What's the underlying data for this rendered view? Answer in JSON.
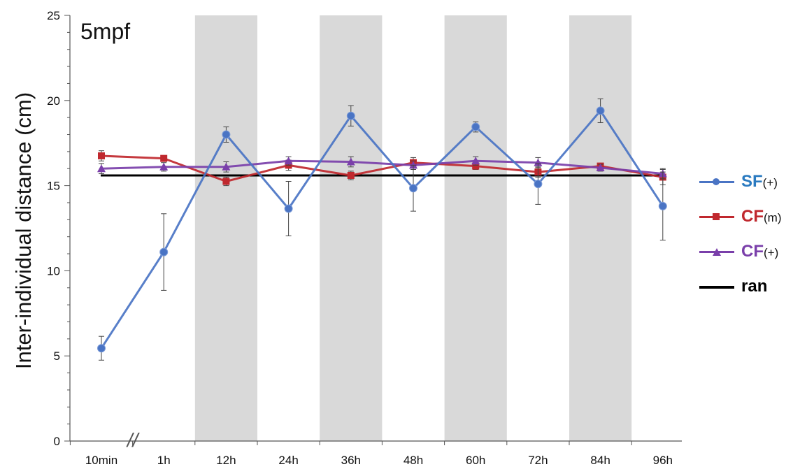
{
  "chart_data": {
    "type": "line",
    "panel_label": "5mpf",
    "ylabel": "Inter-individual distance (cm)",
    "xlabel": "",
    "ylim": [
      0,
      25
    ],
    "yticks": [
      0,
      5,
      10,
      15,
      20,
      25
    ],
    "categories": [
      "10min",
      "1h",
      "12h",
      "24h",
      "36h",
      "48h",
      "60h",
      "72h",
      "84h",
      "96h"
    ],
    "axis_break": "//",
    "shaded_intervals": [
      [
        "12h",
        "24h"
      ],
      [
        "36h",
        "48h"
      ],
      [
        "60h",
        "72h"
      ],
      [
        "84h",
        "96h"
      ]
    ],
    "shade_color": "#d9d9d9",
    "grid": false,
    "legend_position": "right",
    "series": [
      {
        "name": "SF",
        "name_suffix": "(+)",
        "marker": "circle",
        "color": "#4a74c4",
        "label_color": "#2a7ac0",
        "values": [
          5.45,
          11.1,
          18.0,
          13.65,
          19.1,
          14.85,
          18.45,
          15.1,
          19.4,
          13.8
        ],
        "errors": [
          0.7,
          2.25,
          0.45,
          1.6,
          0.6,
          1.35,
          0.3,
          1.2,
          0.7,
          2.0
        ]
      },
      {
        "name": "CF",
        "name_suffix": "(m)",
        "marker": "square",
        "color": "#c0282e",
        "label_color": "#c0282e",
        "values": [
          16.75,
          16.6,
          15.25,
          16.2,
          15.6,
          16.35,
          16.15,
          15.8,
          16.15,
          15.5
        ],
        "errors": [
          0.3,
          0.15,
          0.25,
          0.3,
          0.25,
          0.3,
          0.2,
          0.3,
          0.15,
          0.45
        ]
      },
      {
        "name": "CF",
        "name_suffix": "(+)",
        "marker": "triangle",
        "color": "#7a3faa",
        "label_color": "#7a3faa",
        "values": [
          16.0,
          16.1,
          16.1,
          16.45,
          16.4,
          16.2,
          16.45,
          16.35,
          16.05,
          15.7
        ],
        "errors": [
          0.3,
          0.25,
          0.3,
          0.25,
          0.3,
          0.25,
          0.25,
          0.3,
          0.2,
          0.3
        ]
      },
      {
        "name": "ran",
        "name_suffix": "",
        "marker": "none",
        "color": "#000000",
        "label_color": "#000000",
        "values": [
          15.6,
          15.6,
          15.6,
          15.6,
          15.6,
          15.6,
          15.6,
          15.6,
          15.6,
          15.6
        ],
        "errors": null
      }
    ]
  }
}
